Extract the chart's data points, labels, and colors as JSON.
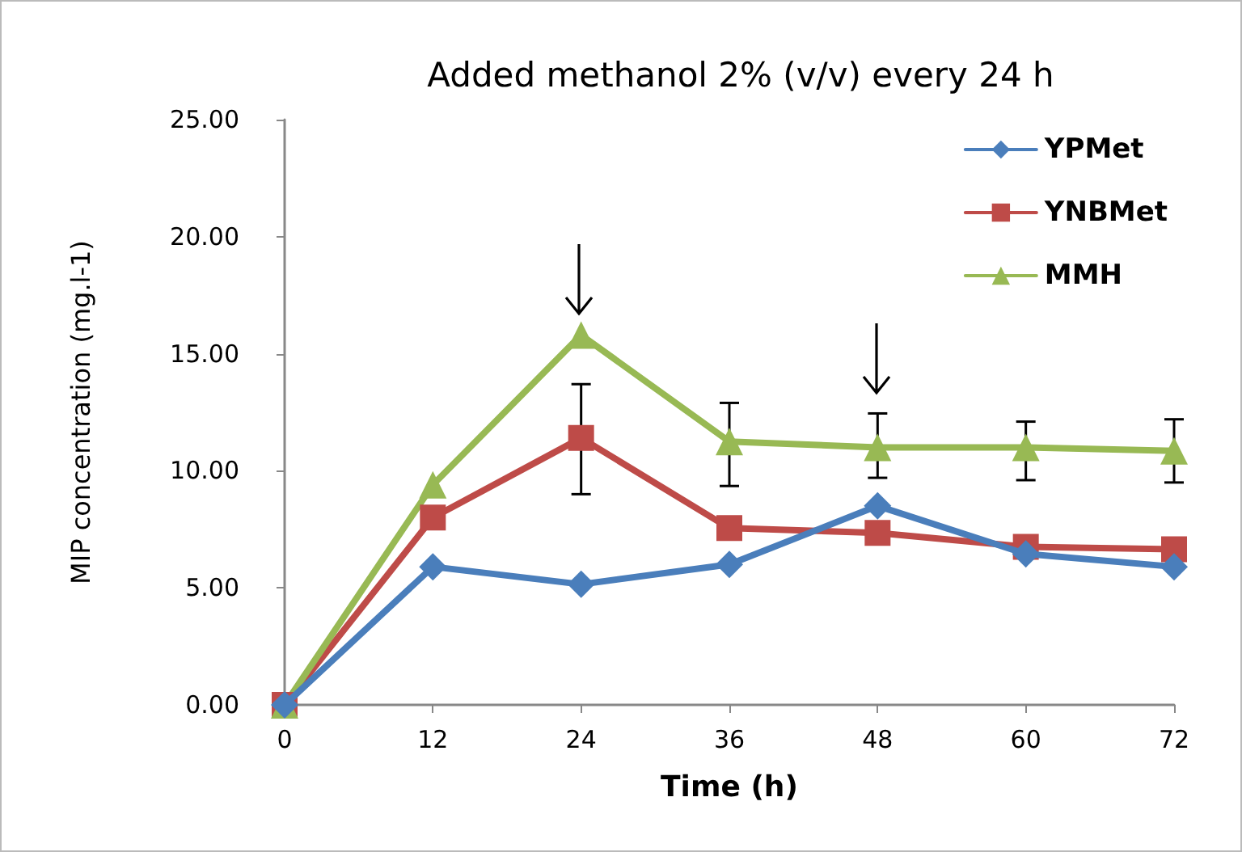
{
  "chart_data": {
    "type": "line",
    "title": "Added methanol 2% (v/v) every 24 h",
    "xlabel": "Time (h)",
    "ylabel": "MIP concentration (mg.l-1)",
    "x": [
      0,
      12,
      24,
      36,
      48,
      60,
      72
    ],
    "xlim": [
      0,
      72
    ],
    "xticks": [
      0,
      12,
      24,
      36,
      48,
      60,
      72
    ],
    "ylim": [
      0,
      25
    ],
    "yticks": [
      {
        "value": 0,
        "label": "0.00"
      },
      {
        "value": 5,
        "label": "5.00"
      },
      {
        "value": 10,
        "label": "10.00"
      },
      {
        "value": 15,
        "label": "15.00"
      },
      {
        "value": 20,
        "label": "20.00"
      },
      {
        "value": 25,
        "label": "25.00"
      }
    ],
    "grid": false,
    "legend": "top right",
    "line_style": "solid",
    "series": [
      {
        "name": "YPMet",
        "color": "#4a7ebb",
        "marker": "diamond",
        "values": [
          0,
          5.9,
          5.15,
          6.0,
          8.5,
          6.45,
          5.9
        ]
      },
      {
        "name": "YNBMet",
        "color": "#be4b48",
        "marker": "square",
        "values": [
          0,
          8.0,
          11.4,
          7.55,
          7.35,
          6.75,
          6.65
        ],
        "errors": [
          null,
          null,
          [
            9.0,
            13.7
          ],
          null,
          null,
          null,
          null
        ]
      },
      {
        "name": "MMH",
        "color": "#98b954",
        "marker": "triangle",
        "values": [
          0,
          9.4,
          15.8,
          11.25,
          11.0,
          11.0,
          10.85
        ],
        "errors": [
          null,
          null,
          null,
          [
            9.35,
            12.9
          ],
          [
            9.7,
            12.45
          ],
          [
            9.6,
            12.1
          ],
          [
            9.5,
            12.2
          ]
        ]
      }
    ]
  }
}
